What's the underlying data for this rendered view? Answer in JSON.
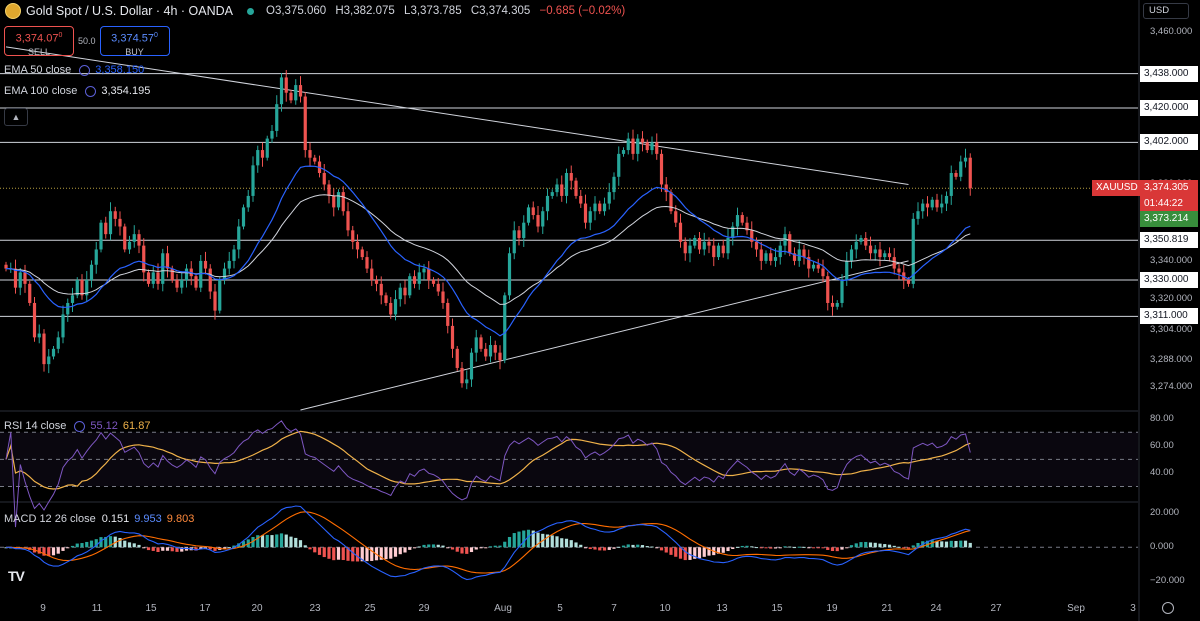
{
  "header": {
    "title": "Gold Spot / U.S. Dollar · 4h · OANDA",
    "ohlc": [
      {
        "k": "O",
        "v": "3,375.060"
      },
      {
        "k": "H",
        "v": "3,382.075"
      },
      {
        "k": "L",
        "v": "3,373.785"
      },
      {
        "k": "C",
        "v": "3,374.305"
      }
    ],
    "change": "−0.685 (−0.02%)"
  },
  "trade": {
    "sell_price": "3,374.07",
    "sell_sup": "0",
    "sell_label": "SELL",
    "spread": "50.0",
    "buy_price": "3,374.57",
    "buy_sup": "0",
    "buy_label": "BUY"
  },
  "indicators": {
    "ema50": {
      "label": "EMA 50 close",
      "value": "3,358.150"
    },
    "ema100": {
      "label": "EMA 100 close",
      "value": "3,354.195"
    },
    "rsi": {
      "label": "RSI 14 close",
      "v1": "55.12",
      "v2": "61.87"
    },
    "macd": {
      "label": "MACD 12 26 close",
      "v1": "0.151",
      "v2": "9.953",
      "v3": "9.803"
    }
  },
  "currency": "USD",
  "collapse_icon": "chevron-up-icon",
  "colors": {
    "up": "#26a69a",
    "down": "#ef5350",
    "ema50": "#2962ff",
    "ema100": "#d1d4dc",
    "rsi": "#7e57c2",
    "rsi_ma": "#f0b24a",
    "macd": "#2962ff",
    "signal": "#ff6d00",
    "price_tag": "#d93737",
    "ema_tag": "#388e3c"
  },
  "price_axis": {
    "ticks": [
      "3,460.000",
      "3,380.000",
      "3,340.000",
      "3,320.000",
      "3,304.000",
      "3,288.000",
      "3,274.000"
    ],
    "levels": [
      "3,438.000",
      "3,420.000",
      "3,402.000",
      "3,350.819",
      "3,330.000",
      "3,311.000"
    ],
    "symbol_tag": "XAUUSD",
    "last_price": "3,374.305",
    "countdown": "01:44:22",
    "ema_tag": "3,373.214"
  },
  "rsi_axis": {
    "ticks": [
      "80.00",
      "60.00",
      "40.00"
    ]
  },
  "macd_axis": {
    "ticks": [
      "20.000",
      "0.000",
      "−20.000"
    ]
  },
  "x_axis": {
    "labels": [
      "9",
      "11",
      "15",
      "17",
      "20",
      "23",
      "25",
      "29",
      "Aug",
      "5",
      "7",
      "10",
      "13",
      "15",
      "19",
      "21",
      "24",
      "27",
      "Sep",
      "3"
    ]
  },
  "chart_data": {
    "type": "candlestick",
    "title": "Gold Spot / U.S. Dollar · 4h · OANDA",
    "ylim": [
      3262,
      3465
    ],
    "horizontal_levels": [
      3438,
      3420,
      3402,
      3350.819,
      3330,
      3311
    ],
    "trendlines": [
      {
        "name": "upper",
        "points": [
          [
            0,
            3452
          ],
          [
            190,
            3380
          ]
        ]
      },
      {
        "name": "lower",
        "points": [
          [
            62,
            3262
          ],
          [
            190,
            3340
          ]
        ]
      }
    ],
    "closes": [
      3336,
      3336,
      3326,
      3334,
      3328,
      3318,
      3300,
      3302,
      3286,
      3290,
      3294,
      3300,
      3312,
      3318,
      3322,
      3330,
      3322,
      3330,
      3338,
      3346,
      3360,
      3354,
      3366,
      3362,
      3358,
      3346,
      3350,
      3354,
      3348,
      3334,
      3328,
      3334,
      3328,
      3344,
      3336,
      3330,
      3326,
      3330,
      3336,
      3332,
      3326,
      3340,
      3336,
      3324,
      3314,
      3330,
      3336,
      3340,
      3346,
      3358,
      3368,
      3374,
      3390,
      3398,
      3394,
      3404,
      3408,
      3422,
      3436,
      3428,
      3424,
      3432,
      3426,
      3398,
      3394,
      3392,
      3386,
      3380,
      3374,
      3368,
      3376,
      3366,
      3356,
      3350,
      3346,
      3342,
      3336,
      3330,
      3328,
      3322,
      3318,
      3312,
      3320,
      3326,
      3322,
      3332,
      3328,
      3334,
      3336,
      3330,
      3328,
      3324,
      3318,
      3306,
      3294,
      3284,
      3276,
      3278,
      3292,
      3300,
      3294,
      3290,
      3296,
      3292,
      3288,
      3322,
      3344,
      3356,
      3352,
      3360,
      3368,
      3364,
      3358,
      3366,
      3374,
      3376,
      3380,
      3374,
      3386,
      3382,
      3374,
      3370,
      3360,
      3366,
      3370,
      3366,
      3370,
      3376,
      3384,
      3396,
      3398,
      3404,
      3396,
      3404,
      3402,
      3398,
      3402,
      3396,
      3380,
      3376,
      3366,
      3360,
      3350,
      3344,
      3348,
      3352,
      3346,
      3350,
      3348,
      3342,
      3348,
      3344,
      3352,
      3358,
      3364,
      3360,
      3356,
      3350,
      3346,
      3340,
      3344,
      3340,
      3342,
      3348,
      3354,
      3344,
      3340,
      3346,
      3342,
      3336,
      3338,
      3336,
      3332,
      3318,
      3316,
      3318,
      3330,
      3340,
      3346,
      3350,
      3352,
      3348,
      3344,
      3346,
      3342,
      3344,
      3342,
      3336,
      3334,
      3330,
      3328,
      3362,
      3366,
      3370,
      3368,
      3372,
      3368,
      3370,
      3374,
      3386,
      3384,
      3392,
      3394,
      3378
    ],
    "ema50_last": 3358.15,
    "ema100_last": 3354.195,
    "rsi": {
      "ylim": [
        20,
        85
      ],
      "levels": [
        70,
        50,
        30
      ],
      "last": 55.12,
      "ma_last": 61.87
    },
    "macd": {
      "ylim": [
        -28,
        26
      ],
      "last_hist": 0.151,
      "last_macd": 9.953,
      "last_signal": 9.803
    }
  }
}
